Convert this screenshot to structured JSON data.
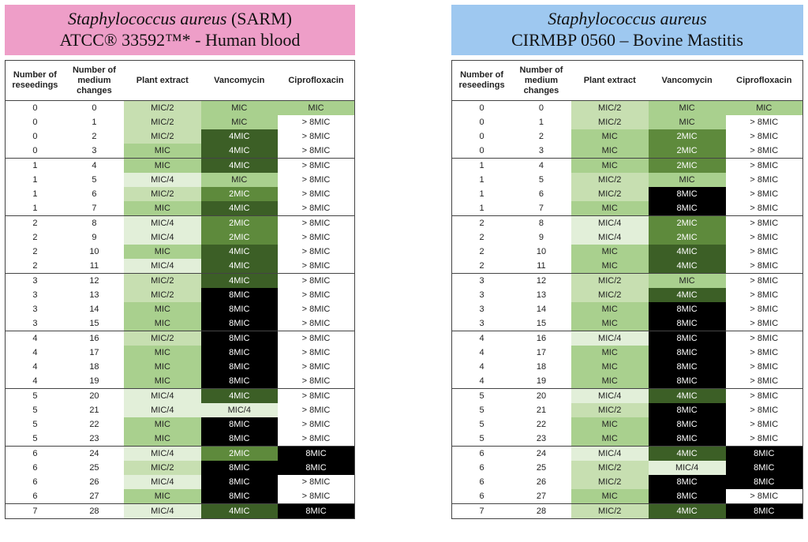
{
  "left": {
    "title_species": "Staphylococcus aureus",
    "title_suffix": " (SARM)",
    "title_line2": "ATCC® 33592™* - Human blood",
    "headers": [
      "Number of reseedings",
      "Number of medium changes",
      "Plant extract",
      "Vancomycin",
      "Ciprofloxacin"
    ],
    "rows": [
      [
        "0",
        "0",
        "MIC/2",
        "MIC",
        "MIC"
      ],
      [
        "0",
        "1",
        "MIC/2",
        "MIC",
        "> 8MIC"
      ],
      [
        "0",
        "2",
        "MIC/2",
        "4MIC",
        "> 8MIC"
      ],
      [
        "0",
        "3",
        "MIC",
        "4MIC",
        "> 8MIC"
      ],
      [
        "1",
        "4",
        "MIC",
        "4MIC",
        "> 8MIC"
      ],
      [
        "1",
        "5",
        "MIC/4",
        "MIC",
        "> 8MIC"
      ],
      [
        "1",
        "6",
        "MIC/2",
        "2MIC",
        "> 8MIC"
      ],
      [
        "1",
        "7",
        "MIC",
        "4MIC",
        "> 8MIC"
      ],
      [
        "2",
        "8",
        "MIC/4",
        "2MIC",
        "> 8MIC"
      ],
      [
        "2",
        "9",
        "MIC/4",
        "2MIC",
        "> 8MIC"
      ],
      [
        "2",
        "10",
        "MIC",
        "4MIC",
        "> 8MIC"
      ],
      [
        "2",
        "11",
        "MIC/4",
        "4MIC",
        "> 8MIC"
      ],
      [
        "3",
        "12",
        "MIC/2",
        "4MIC",
        "> 8MIC"
      ],
      [
        "3",
        "13",
        "MIC/2",
        "8MIC",
        "> 8MIC"
      ],
      [
        "3",
        "14",
        "MIC",
        "8MIC",
        "> 8MIC"
      ],
      [
        "3",
        "15",
        "MIC",
        "8MIC",
        "> 8MIC"
      ],
      [
        "4",
        "16",
        "MIC/2",
        "8MIC",
        "> 8MIC"
      ],
      [
        "4",
        "17",
        "MIC",
        "8MIC",
        "> 8MIC"
      ],
      [
        "4",
        "18",
        "MIC",
        "8MIC",
        "> 8MIC"
      ],
      [
        "4",
        "19",
        "MIC",
        "8MIC",
        "> 8MIC"
      ],
      [
        "5",
        "20",
        "MIC/4",
        "4MIC",
        "> 8MIC"
      ],
      [
        "5",
        "21",
        "MIC/4",
        "MIC/4",
        "> 8MIC"
      ],
      [
        "5",
        "22",
        "MIC",
        "8MIC",
        "> 8MIC"
      ],
      [
        "5",
        "23",
        "MIC",
        "8MIC",
        "> 8MIC"
      ],
      [
        "6",
        "24",
        "MIC/4",
        "2MIC",
        "8MIC"
      ],
      [
        "6",
        "25",
        "MIC/2",
        "8MIC",
        "8MIC"
      ],
      [
        "6",
        "26",
        "MIC/4",
        "8MIC",
        "> 8MIC"
      ],
      [
        "6",
        "27",
        "MIC",
        "8MIC",
        "> 8MIC"
      ],
      [
        "7",
        "28",
        "MIC/4",
        "4MIC",
        "8MIC"
      ]
    ]
  },
  "right": {
    "title_species": "Staphylococcus aureus",
    "title_suffix": "",
    "title_line2": "CIRMBP 0560 – Bovine Mastitis",
    "headers": [
      "Number of reseedings",
      "Number of medium changes",
      "Plant extract",
      "Vancomycin",
      "Ciprofloxacin"
    ],
    "rows": [
      [
        "0",
        "0",
        "MIC/2",
        "MIC",
        "MIC"
      ],
      [
        "0",
        "1",
        "MIC/2",
        "MIC",
        "> 8MIC"
      ],
      [
        "0",
        "2",
        "MIC",
        "2MIC",
        "> 8MIC"
      ],
      [
        "0",
        "3",
        "MIC",
        "2MIC",
        "> 8MIC"
      ],
      [
        "1",
        "4",
        "MIC",
        "2MIC",
        "> 8MIC"
      ],
      [
        "1",
        "5",
        "MIC/2",
        "MIC",
        "> 8MIC"
      ],
      [
        "1",
        "6",
        "MIC/2",
        "8MIC",
        "> 8MIC"
      ],
      [
        "1",
        "7",
        "MIC",
        "8MIC",
        "> 8MIC"
      ],
      [
        "2",
        "8",
        "MIC/4",
        "2MIC",
        "> 8MIC"
      ],
      [
        "2",
        "9",
        "MIC/4",
        "2MIC",
        "> 8MIC"
      ],
      [
        "2",
        "10",
        "MIC",
        "4MIC",
        "> 8MIC"
      ],
      [
        "2",
        "11",
        "MIC",
        "4MIC",
        "> 8MIC"
      ],
      [
        "3",
        "12",
        "MIC/2",
        "MIC",
        "> 8MIC"
      ],
      [
        "3",
        "13",
        "MIC/2",
        "4MIC",
        "> 8MIC"
      ],
      [
        "3",
        "14",
        "MIC",
        "8MIC",
        "> 8MIC"
      ],
      [
        "3",
        "15",
        "MIC",
        "8MIC",
        "> 8MIC"
      ],
      [
        "4",
        "16",
        "MIC/4",
        "8MIC",
        "> 8MIC"
      ],
      [
        "4",
        "17",
        "MIC",
        "8MIC",
        "> 8MIC"
      ],
      [
        "4",
        "18",
        "MIC",
        "8MIC",
        "> 8MIC"
      ],
      [
        "4",
        "19",
        "MIC",
        "8MIC",
        "> 8MIC"
      ],
      [
        "5",
        "20",
        "MIC/4",
        "4MIC",
        "> 8MIC"
      ],
      [
        "5",
        "21",
        "MIC/2",
        "8MIC",
        "> 8MIC"
      ],
      [
        "5",
        "22",
        "MIC",
        "8MIC",
        "> 8MIC"
      ],
      [
        "5",
        "23",
        "MIC",
        "8MIC",
        "> 8MIC"
      ],
      [
        "6",
        "24",
        "MIC/4",
        "4MIC",
        "8MIC"
      ],
      [
        "6",
        "25",
        "MIC/2",
        "MIC/4",
        "8MIC"
      ],
      [
        "6",
        "26",
        "MIC/2",
        "8MIC",
        "8MIC"
      ],
      [
        "6",
        "27",
        "MIC",
        "8MIC",
        "> 8MIC"
      ],
      [
        "7",
        "28",
        "MIC/2",
        "4MIC",
        "8MIC"
      ]
    ]
  },
  "colors": {
    "MIC/2": "#c7dfb1",
    "MIC": "#a9d08e",
    "MIC/4": "#e2efd9",
    "2MIC": "#5e8a3c",
    "4MIC": "#3c5f26",
    "8MIC": "#000000",
    "> 8MIC": "#ffffff",
    "left_title_bg": "#ee9ec8",
    "right_title_bg": "#9ec8f0"
  }
}
